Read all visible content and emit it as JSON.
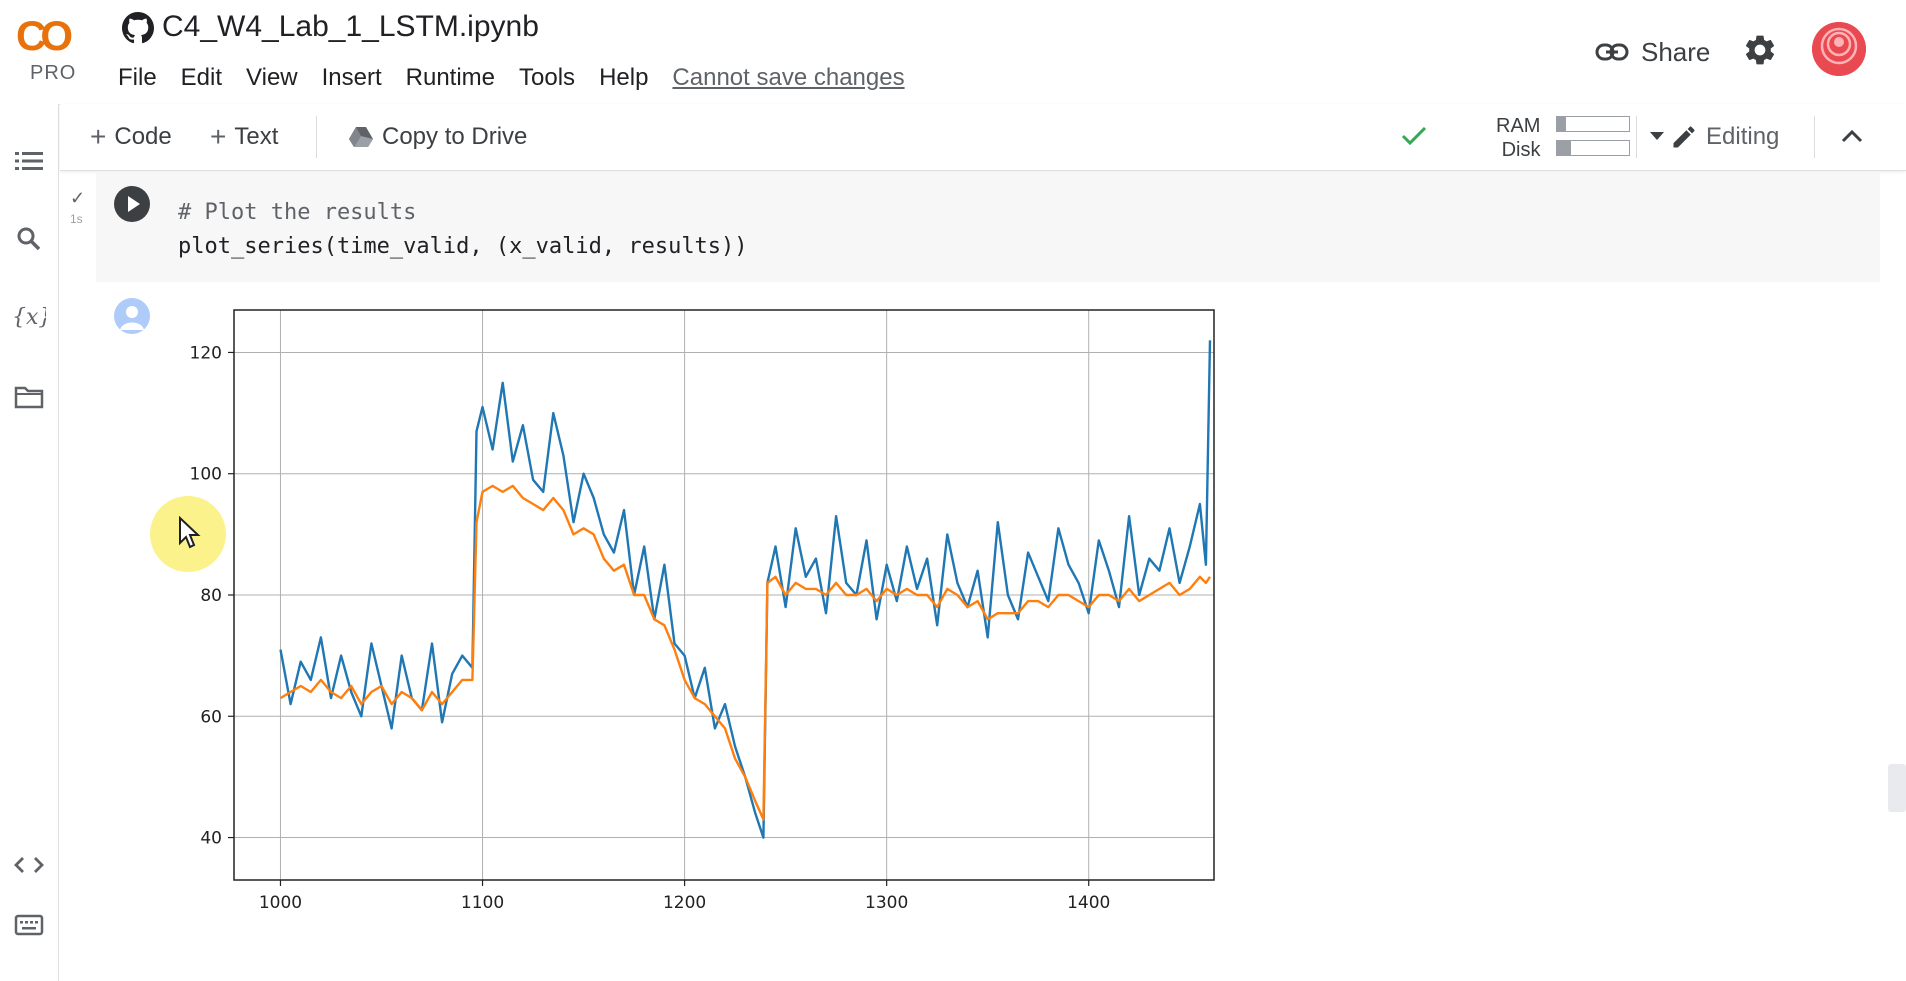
{
  "app": {
    "logo_text": "CO",
    "plan": "PRO",
    "notebook_title": "C4_W4_Lab_1_LSTM.ipynb"
  },
  "menu": {
    "items": [
      "File",
      "Edit",
      "View",
      "Insert",
      "Runtime",
      "Tools",
      "Help"
    ],
    "status_link": "Cannot save changes"
  },
  "header_actions": {
    "share_label": "Share",
    "share_icon": "link-icon",
    "settings_icon": "gear-icon"
  },
  "sidebar": {
    "top_icons": [
      "table-of-contents-icon",
      "search-icon",
      "variables-icon",
      "files-icon"
    ],
    "bottom_icons": [
      "code-snippets-icon",
      "terminal-icon"
    ]
  },
  "toolbar": {
    "code_label": "Code",
    "text_label": "Text",
    "copy_label": "Copy to Drive",
    "ram_label": "RAM",
    "disk_label": "Disk",
    "ram_usage": 0.12,
    "disk_usage": 0.2,
    "editing_label": "Editing"
  },
  "cell": {
    "status": "✓",
    "exec_time": "1s",
    "code_lines": [
      "# Plot the results",
      "plot_series(time_valid, (x_valid, results))"
    ]
  },
  "colors": {
    "series_blue": "#1f77b4",
    "series_orange": "#ff7f0e",
    "grid": "#b0b0b0"
  },
  "chart_data": {
    "type": "line",
    "title": "",
    "xlabel": "",
    "ylabel": "",
    "xlim": [
      977,
      1462
    ],
    "ylim": [
      33,
      127
    ],
    "xticks": [
      1000,
      1100,
      1200,
      1300,
      1400
    ],
    "yticks": [
      40,
      60,
      80,
      100,
      120
    ],
    "grid": true,
    "legend": "none",
    "series": [
      {
        "color": "#1f77b4",
        "x": [
          1000,
          1005,
          1010,
          1015,
          1020,
          1025,
          1030,
          1035,
          1040,
          1045,
          1050,
          1055,
          1060,
          1065,
          1070,
          1075,
          1080,
          1085,
          1090,
          1095,
          1097,
          1100,
          1105,
          1110,
          1115,
          1120,
          1125,
          1130,
          1135,
          1140,
          1145,
          1150,
          1155,
          1160,
          1165,
          1170,
          1175,
          1180,
          1185,
          1190,
          1195,
          1200,
          1205,
          1210,
          1215,
          1220,
          1225,
          1230,
          1235,
          1239,
          1241,
          1245,
          1250,
          1255,
          1260,
          1265,
          1270,
          1275,
          1280,
          1285,
          1290,
          1295,
          1300,
          1305,
          1310,
          1315,
          1320,
          1325,
          1330,
          1335,
          1340,
          1345,
          1350,
          1355,
          1360,
          1365,
          1370,
          1375,
          1380,
          1385,
          1390,
          1395,
          1400,
          1405,
          1410,
          1415,
          1420,
          1425,
          1430,
          1435,
          1440,
          1445,
          1450,
          1455,
          1458,
          1460
        ],
        "y": [
          71,
          62,
          69,
          66,
          73,
          63,
          70,
          64,
          60,
          72,
          65,
          58,
          70,
          63,
          61,
          72,
          59,
          67,
          70,
          68,
          107,
          111,
          104,
          115,
          102,
          108,
          99,
          97,
          110,
          103,
          92,
          100,
          96,
          90,
          87,
          94,
          80,
          88,
          76,
          85,
          72,
          70,
          63,
          68,
          58,
          62,
          55,
          50,
          44,
          40,
          82,
          88,
          78,
          91,
          83,
          86,
          77,
          93,
          82,
          80,
          89,
          76,
          85,
          79,
          88,
          81,
          86,
          75,
          90,
          82,
          78,
          84,
          73,
          92,
          80,
          76,
          87,
          83,
          79,
          91,
          85,
          82,
          77,
          89,
          84,
          78,
          93,
          80,
          86,
          84,
          91,
          82,
          88,
          95,
          85,
          122
        ]
      },
      {
        "color": "#ff7f0e",
        "x": [
          1000,
          1005,
          1010,
          1015,
          1020,
          1025,
          1030,
          1035,
          1040,
          1045,
          1050,
          1055,
          1060,
          1065,
          1070,
          1075,
          1080,
          1085,
          1090,
          1095,
          1097,
          1100,
          1105,
          1110,
          1115,
          1120,
          1125,
          1130,
          1135,
          1140,
          1145,
          1150,
          1155,
          1160,
          1165,
          1170,
          1175,
          1180,
          1185,
          1190,
          1195,
          1200,
          1205,
          1210,
          1215,
          1220,
          1225,
          1230,
          1235,
          1239,
          1241,
          1245,
          1250,
          1255,
          1260,
          1265,
          1270,
          1275,
          1280,
          1285,
          1290,
          1295,
          1300,
          1305,
          1310,
          1315,
          1320,
          1325,
          1330,
          1335,
          1340,
          1345,
          1350,
          1355,
          1360,
          1365,
          1370,
          1375,
          1380,
          1385,
          1390,
          1395,
          1400,
          1405,
          1410,
          1415,
          1420,
          1425,
          1430,
          1435,
          1440,
          1445,
          1450,
          1455,
          1458,
          1460
        ],
        "y": [
          63,
          64,
          65,
          64,
          66,
          64,
          63,
          65,
          62,
          64,
          65,
          62,
          64,
          63,
          61,
          64,
          62,
          64,
          66,
          66,
          92,
          97,
          98,
          97,
          98,
          96,
          95,
          94,
          96,
          94,
          90,
          91,
          90,
          86,
          84,
          85,
          80,
          80,
          76,
          75,
          71,
          66,
          63,
          62,
          60,
          58,
          53,
          50,
          46,
          43,
          82,
          83,
          80,
          82,
          81,
          81,
          80,
          82,
          80,
          80,
          81,
          79,
          81,
          80,
          81,
          80,
          80,
          78,
          81,
          80,
          78,
          79,
          76,
          77,
          77,
          77,
          79,
          79,
          78,
          80,
          80,
          79,
          78,
          80,
          80,
          79,
          81,
          79,
          80,
          81,
          82,
          80,
          81,
          83,
          82,
          83
        ]
      }
    ]
  }
}
